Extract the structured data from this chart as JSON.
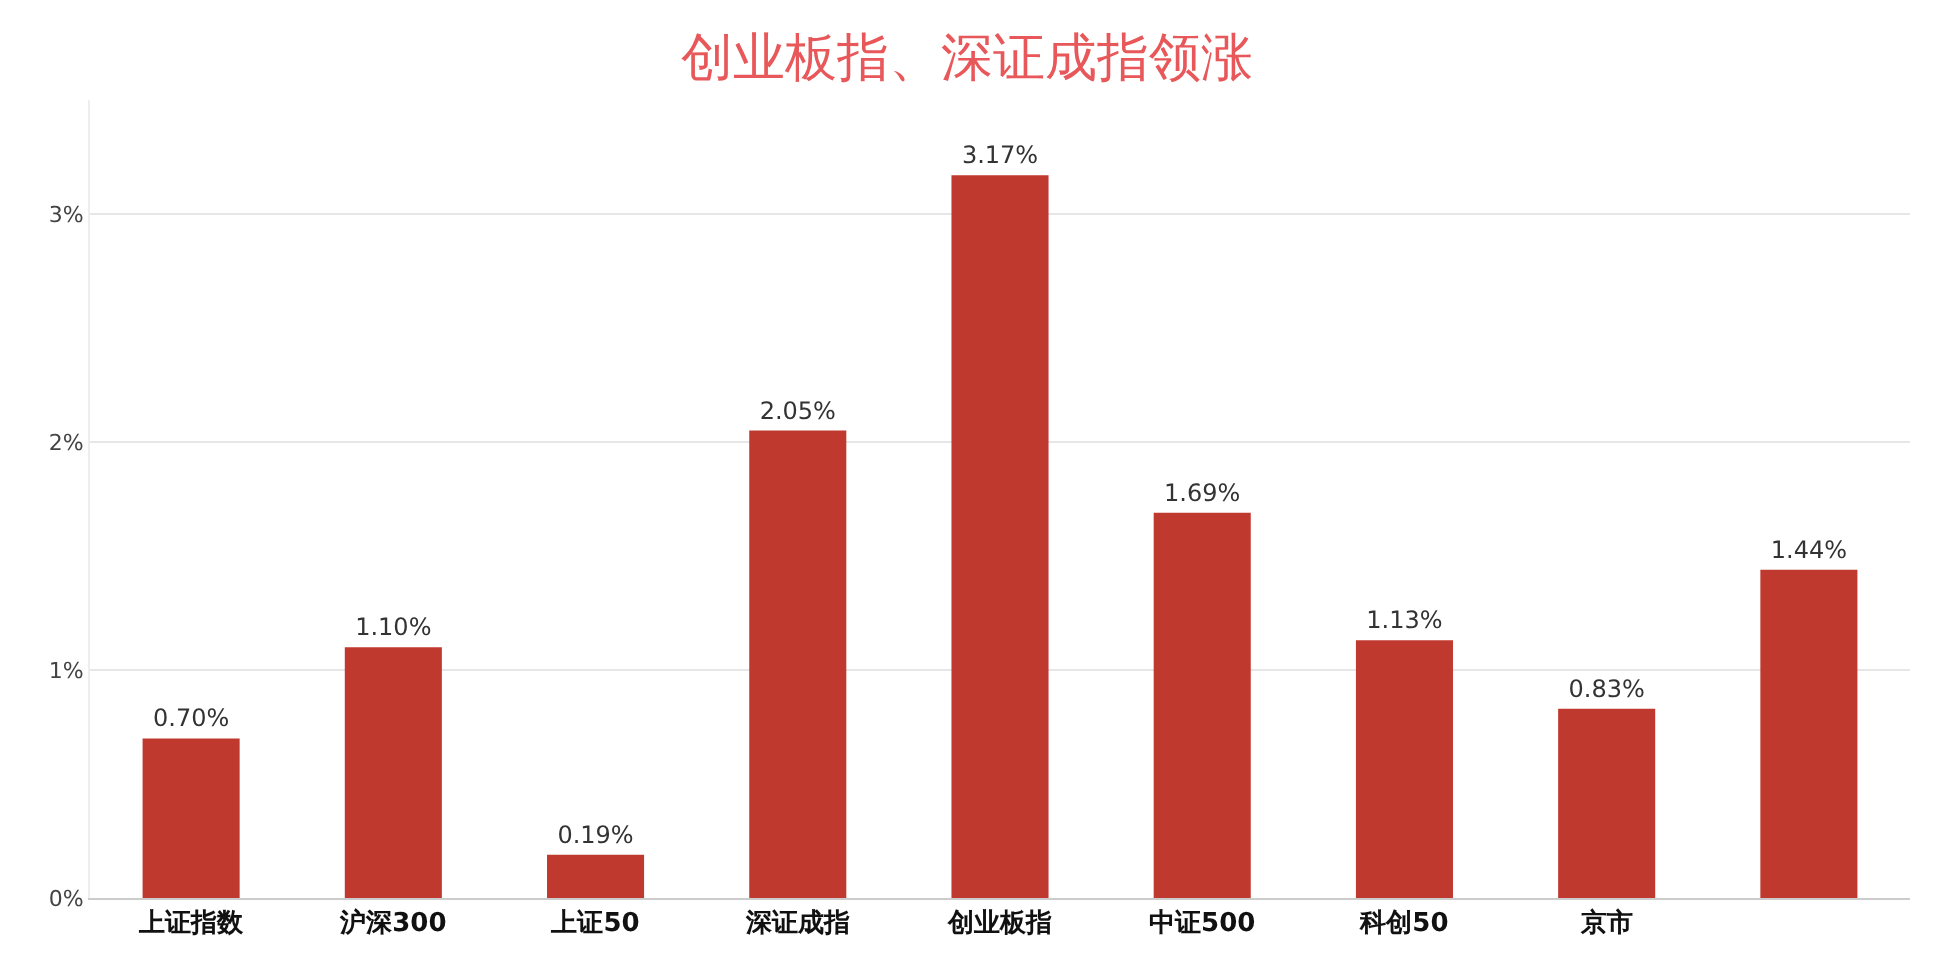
{
  "chart_data": {
    "type": "bar",
    "title": "创业板指、深证成指领涨",
    "categories": [
      "上证指数",
      "沪深300",
      "上证50",
      "深证成指",
      "创业板指",
      "中证500",
      "科创50",
      "京市",
      null
    ],
    "values": [
      0.7,
      1.1,
      0.19,
      2.05,
      3.17,
      1.69,
      1.13,
      0.83,
      1.44
    ],
    "value_labels": [
      "0.70%",
      "1.10%",
      "0.19%",
      "2.05%",
      "3.17%",
      "1.69%",
      "1.13%",
      "0.83%",
      "1.44%"
    ],
    "color": "#c0392f",
    "ylim": [
      0,
      3.5
    ],
    "yticks": [
      {
        "value": 0,
        "label": "0%"
      },
      {
        "value": 1,
        "label": "1%"
      },
      {
        "value": 2,
        "label": "2%"
      },
      {
        "value": 3,
        "label": "3%"
      }
    ],
    "grid": "y"
  }
}
